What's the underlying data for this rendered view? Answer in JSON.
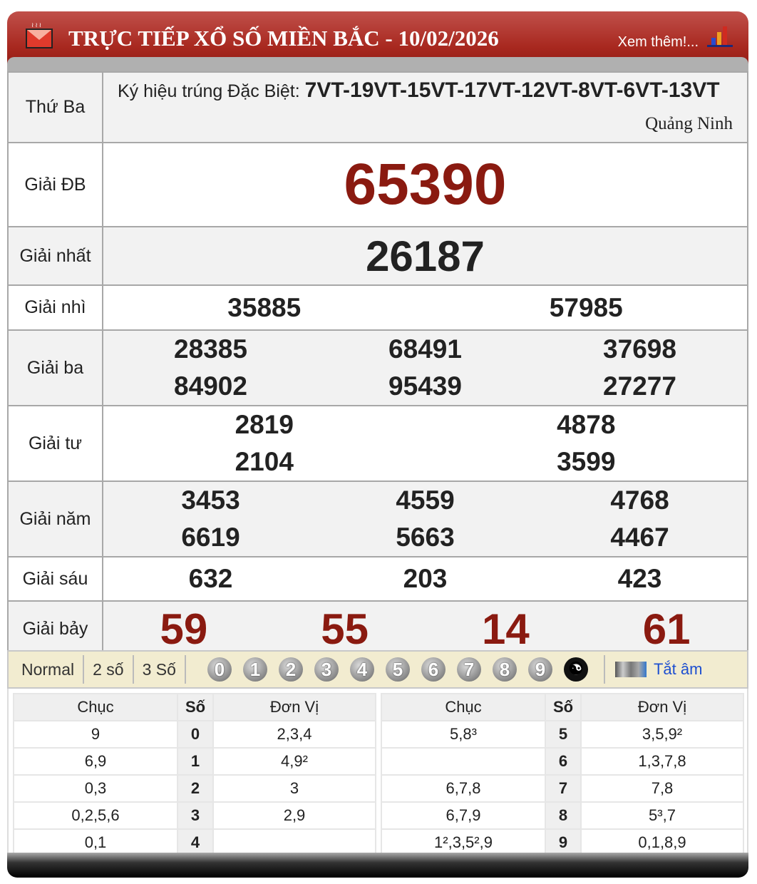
{
  "header": {
    "title": "TRỰC TIẾP XỔ SỐ MIỀN BẮC - 10/02/2026",
    "more": "Xem thêm!...",
    "brand_color": "#a8281f"
  },
  "info": {
    "day": "Thứ Ba",
    "code_label": "Ký hiệu trúng Đặc Biệt:",
    "codes": "7VT-19VT-15VT-17VT-12VT-8VT-6VT-13VT",
    "province": "Quảng Ninh"
  },
  "prizes": {
    "db": {
      "label": "Giải ĐB",
      "values": [
        "65390"
      ]
    },
    "nhat": {
      "label": "Giải nhất",
      "values": [
        "26187"
      ]
    },
    "nhi": {
      "label": "Giải nhì",
      "values": [
        "35885",
        "57985"
      ]
    },
    "ba": {
      "label": "Giải ba",
      "values": [
        "28385",
        "68491",
        "37698",
        "84902",
        "95439",
        "27277"
      ]
    },
    "tu": {
      "label": "Giải tư",
      "values": [
        "2819",
        "4878",
        "2104",
        "3599"
      ]
    },
    "nam": {
      "label": "Giải năm",
      "values": [
        "3453",
        "4559",
        "4768",
        "6619",
        "5663",
        "4467"
      ]
    },
    "sau": {
      "label": "Giải sáu",
      "values": [
        "632",
        "203",
        "423"
      ]
    },
    "bay": {
      "label": "Giải bảy",
      "values": [
        "59",
        "55",
        "14",
        "61"
      ]
    }
  },
  "toolbar": {
    "modes": [
      "Normal",
      "2 số",
      "3 Số"
    ],
    "balls": [
      "0",
      "1",
      "2",
      "3",
      "4",
      "5",
      "6",
      "7",
      "8",
      "9"
    ],
    "mute": "Tắt âm"
  },
  "loto": {
    "headers": [
      "Chục",
      "Số",
      "Đơn Vị"
    ],
    "left": [
      [
        "9",
        "0",
        "2,3,4"
      ],
      [
        "6,9",
        "1",
        "4,9²"
      ],
      [
        "0,3",
        "2",
        "3"
      ],
      [
        "0,2,5,6",
        "3",
        "2,9"
      ],
      [
        "0,1",
        "4",
        ""
      ]
    ],
    "right": [
      [
        "5,8³",
        "5",
        "3,5,9²"
      ],
      [
        "",
        "6",
        "1,3,7,8"
      ],
      [
        "6,7,8",
        "7",
        "7,8"
      ],
      [
        "6,7,9",
        "8",
        "5³,7"
      ],
      [
        "1²,3,5²,9",
        "9",
        "0,1,8,9"
      ]
    ]
  }
}
